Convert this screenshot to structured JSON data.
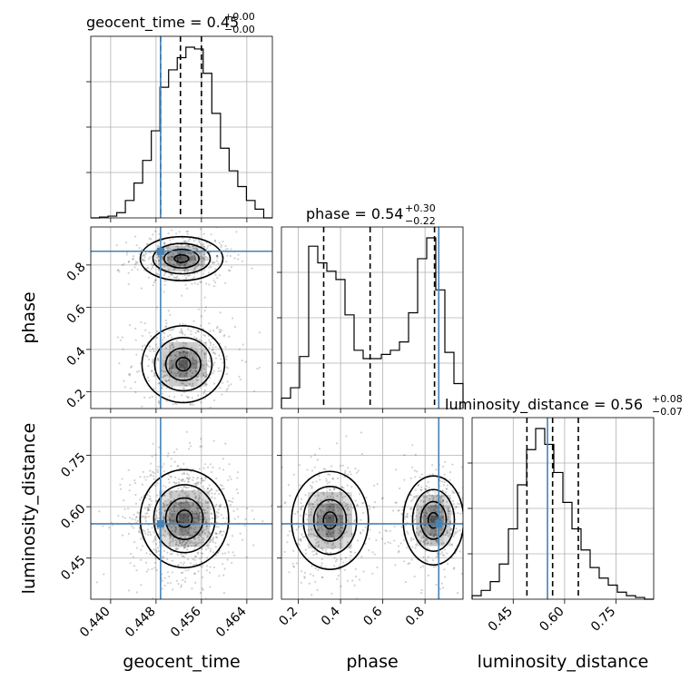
{
  "chart_data": {
    "type": "corner",
    "parameters": [
      {
        "name": "geocent_time",
        "xlabel": "geocent_time",
        "title_main": "geocent_time = 0.45",
        "title_plus": "+0.00",
        "title_minus": "−0.00",
        "range": [
          0.4365,
          0.4685
        ],
        "ticks": [
          0.44,
          0.448,
          0.456,
          0.464
        ],
        "tick_labels": [
          "0.440",
          "0.448",
          "0.456",
          "0.464"
        ],
        "truth": 0.4488,
        "quantiles": [
          0.4488,
          0.4523,
          0.456
        ],
        "hist": [
          0,
          0.005,
          0.01,
          0.03,
          0.1,
          0.2,
          0.33,
          0.5,
          0.75,
          0.85,
          0.92,
          0.98,
          0.97,
          0.83,
          0.6,
          0.4,
          0.27,
          0.18,
          0.1,
          0.05,
          0
        ]
      },
      {
        "name": "phase",
        "xlabel": "phase",
        "ylabel": "phase",
        "title_main": "phase = 0.54",
        "title_plus": "+0.30",
        "title_minus": "−0.22",
        "range": [
          0.12,
          0.98
        ],
        "ticks": [
          0.2,
          0.4,
          0.6,
          0.8
        ],
        "tick_labels": [
          "0.2",
          "0.4",
          "0.6",
          "0.8"
        ],
        "truth": 0.865,
        "quantiles": [
          0.32,
          0.54,
          0.845
        ],
        "hist": [
          0.05,
          0.1,
          0.25,
          0.78,
          0.7,
          0.66,
          0.62,
          0.45,
          0.28,
          0.24,
          0.24,
          0.26,
          0.28,
          0.32,
          0.46,
          0.72,
          0.82,
          0.57,
          0.27,
          0.12
        ]
      },
      {
        "name": "luminosity_distance",
        "xlabel": "luminosity_distance",
        "ylabel": "luminosity_distance",
        "title_main": "luminosity_distance = 0.56",
        "title_plus": "+0.08",
        "title_minus": "−0.07",
        "range": [
          0.33,
          0.86
        ],
        "ticks": [
          0.45,
          0.6,
          0.75
        ],
        "tick_labels": [
          "0.45",
          "0.60",
          "0.75"
        ],
        "truth": 0.55,
        "quantiles": [
          0.49,
          0.565,
          0.64
        ],
        "hist": [
          0.02,
          0.05,
          0.1,
          0.2,
          0.4,
          0.65,
          0.85,
          0.97,
          0.88,
          0.72,
          0.55,
          0.4,
          0.28,
          0.18,
          0.12,
          0.08,
          0.04,
          0.02,
          0.01,
          0.0
        ]
      }
    ],
    "truth_color": "#4682b4",
    "contours_2d": [
      {
        "x_param": "geocent_time",
        "y_param": "phase",
        "modes": [
          {
            "cx": 0.4525,
            "cy": 0.83,
            "sx": 0.0028,
            "sy": 0.04
          },
          {
            "cx": 0.4528,
            "cy": 0.33,
            "sx": 0.0028,
            "sy": 0.07
          }
        ]
      },
      {
        "x_param": "geocent_time",
        "y_param": "luminosity_distance",
        "modes": [
          {
            "cx": 0.453,
            "cy": 0.565,
            "sx": 0.003,
            "sy": 0.055
          }
        ]
      },
      {
        "x_param": "phase",
        "y_param": "luminosity_distance",
        "modes": [
          {
            "cx": 0.35,
            "cy": 0.56,
            "sx": 0.07,
            "sy": 0.055
          },
          {
            "cx": 0.84,
            "cy": 0.56,
            "sx": 0.055,
            "sy": 0.05
          }
        ]
      }
    ],
    "grid": true
  }
}
